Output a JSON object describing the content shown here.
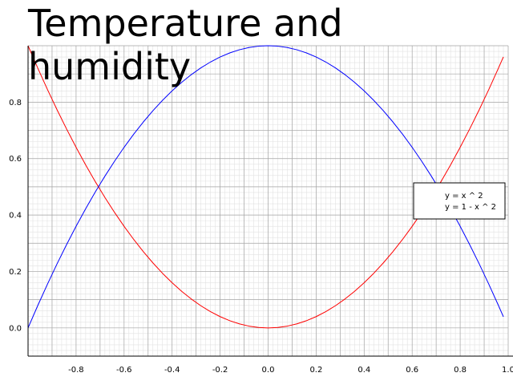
{
  "chart_data": {
    "type": "line",
    "title": "Temperature and humidity",
    "xlabel": "",
    "ylabel": "",
    "xlim": [
      -1.0,
      1.0
    ],
    "ylim": [
      -0.1,
      1.0
    ],
    "x_ticks": [
      -0.8,
      -0.6,
      -0.4,
      -0.2,
      0.0,
      0.2,
      0.4,
      0.6,
      0.8,
      1.0
    ],
    "x_tick_labels": [
      "-0.8",
      "-0.6",
      "-0.4",
      "-0.2",
      "0.0",
      "0.2",
      "0.4",
      "0.6",
      "0.8",
      "1.0"
    ],
    "y_ticks": [
      0.0,
      0.2,
      0.4,
      0.6,
      0.8
    ],
    "y_tick_labels": [
      "0.0",
      "0.2",
      "0.4",
      "0.6",
      "0.8"
    ],
    "grid": true,
    "minor_grid": true,
    "legend_position": "right",
    "x": [
      -1.0,
      -0.96,
      -0.92,
      -0.88,
      -0.84,
      -0.8,
      -0.76,
      -0.72,
      -0.68,
      -0.64,
      -0.6,
      -0.56,
      -0.52,
      -0.48,
      -0.44,
      -0.4,
      -0.36,
      -0.32,
      -0.28,
      -0.24,
      -0.2,
      -0.16,
      -0.12,
      -0.08,
      -0.04,
      0.0,
      0.04,
      0.08,
      0.12,
      0.16,
      0.2,
      0.24,
      0.28,
      0.32,
      0.36,
      0.4,
      0.44,
      0.48,
      0.52,
      0.56,
      0.6,
      0.64,
      0.68,
      0.72,
      0.76,
      0.8,
      0.84,
      0.88,
      0.92,
      0.96,
      0.98
    ],
    "series": [
      {
        "name": "y = x ^ 2",
        "color": "#ff0000",
        "values": [
          1.0,
          0.9216,
          0.8464,
          0.7744,
          0.7056,
          0.64,
          0.5776,
          0.5184,
          0.4624,
          0.4096,
          0.36,
          0.3136,
          0.2704,
          0.2304,
          0.1936,
          0.16,
          0.1296,
          0.1024,
          0.0784,
          0.0576,
          0.04,
          0.0256,
          0.0144,
          0.0064,
          0.0016,
          0.0,
          0.0016,
          0.0064,
          0.0144,
          0.0256,
          0.04,
          0.0576,
          0.0784,
          0.1024,
          0.1296,
          0.16,
          0.1936,
          0.2304,
          0.2704,
          0.3136,
          0.36,
          0.4096,
          0.4624,
          0.5184,
          0.5776,
          0.64,
          0.7056,
          0.7744,
          0.8464,
          0.9216,
          0.9604
        ]
      },
      {
        "name": "y = 1 - x ^ 2",
        "color": "#0000ff",
        "values": [
          0.0,
          0.0784,
          0.1536,
          0.2256,
          0.2944,
          0.36,
          0.4224,
          0.4816,
          0.5376,
          0.5904,
          0.64,
          0.6864,
          0.7296,
          0.7696,
          0.8064,
          0.84,
          0.8704,
          0.8976,
          0.9216,
          0.9424,
          0.96,
          0.9744,
          0.9856,
          0.9936,
          0.9984,
          1.0,
          0.9984,
          0.9936,
          0.9856,
          0.9744,
          0.96,
          0.9424,
          0.9216,
          0.8976,
          0.8704,
          0.84,
          0.8064,
          0.7696,
          0.7296,
          0.6864,
          0.64,
          0.5904,
          0.5376,
          0.4816,
          0.4224,
          0.36,
          0.2944,
          0.2256,
          0.1536,
          0.0784,
          0.0396
        ]
      }
    ]
  }
}
